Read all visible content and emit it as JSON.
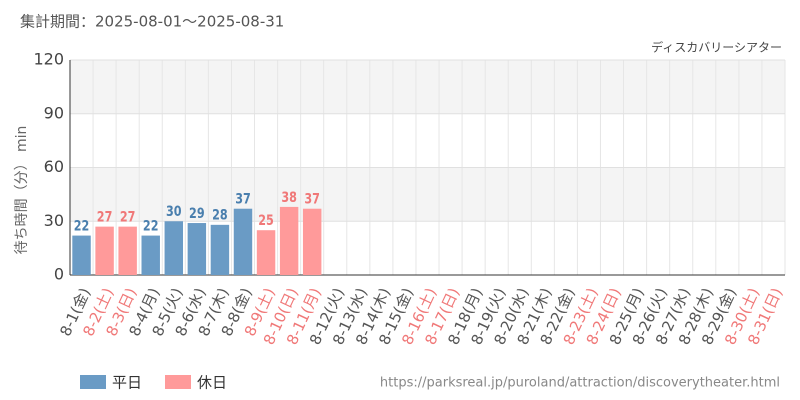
{
  "chart_data": {
    "type": "bar",
    "title": "集計期間：2025-08-01～2025-08-31",
    "subtitle": "ディスカバリーシアター",
    "y_label": "待ち時間（分） min",
    "source": "https://parksreal.jp/puroland/attraction/discoverytheater.html",
    "categories": [
      "8-1(金)",
      "8-2(土)",
      "8-3(日)",
      "8-4(月)",
      "8-5(火)",
      "8-6(水)",
      "8-7(木)",
      "8-8(金)",
      "8-9(土)",
      "8-10(日)",
      "8-11(月)",
      "8-12(火)",
      "8-13(水)",
      "8-14(木)",
      "8-15(金)",
      "8-16(土)",
      "8-17(日)",
      "8-18(月)",
      "8-19(火)",
      "8-20(水)",
      "8-21(木)",
      "8-22(金)",
      "8-23(土)",
      "8-24(日)",
      "8-25(月)",
      "8-26(火)",
      "8-27(水)",
      "8-28(木)",
      "8-29(金)",
      "8-30(土)",
      "8-31(日)"
    ],
    "values": [
      22,
      27,
      27,
      22,
      30,
      29,
      28,
      37,
      25,
      38,
      37,
      null,
      null,
      null,
      null,
      null,
      null,
      null,
      null,
      null,
      null,
      null,
      null,
      null,
      null,
      null,
      null,
      null,
      null,
      null,
      null
    ],
    "holidays": [
      false,
      true,
      true,
      false,
      false,
      false,
      false,
      false,
      true,
      true,
      true,
      false,
      false,
      false,
      false,
      true,
      true,
      false,
      false,
      false,
      false,
      false,
      true,
      true,
      false,
      false,
      false,
      false,
      false,
      true,
      true
    ],
    "legend": [
      {
        "name": "平日",
        "color": "#6a9bc5",
        "label_color": "#4a7fae",
        "text_color": "#555555"
      },
      {
        "name": "休日",
        "color": "#ff9a9a",
        "label_color": "#f07878",
        "text_color": "#f07878"
      }
    ],
    "ylim": [
      0,
      120
    ],
    "yticks": [
      0,
      30,
      60,
      90,
      120
    ],
    "grid": true
  }
}
